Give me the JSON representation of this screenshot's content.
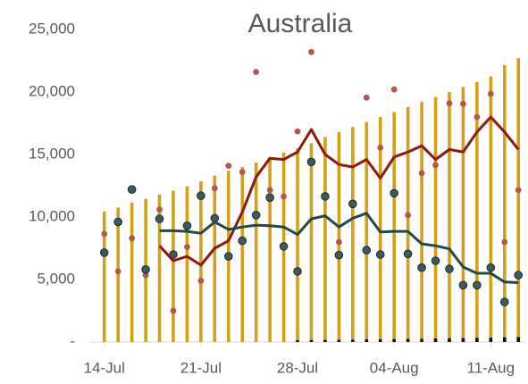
{
  "chart_data": {
    "type": "combo",
    "title": "Australia",
    "categories": [
      "14-Jul",
      null,
      null,
      null,
      null,
      null,
      null,
      "21-Jul",
      null,
      null,
      null,
      null,
      null,
      null,
      "28-Jul",
      null,
      null,
      null,
      null,
      null,
      null,
      "04-Aug",
      null,
      null,
      null,
      null,
      null,
      null,
      "11-Aug",
      null,
      null
    ],
    "series": [
      {
        "kind": "bar",
        "color": "#d4a017",
        "values": [
          10450,
          10750,
          11150,
          11450,
          11800,
          12100,
          12450,
          12850,
          13300,
          13700,
          14000,
          14350,
          14800,
          15150,
          15500,
          15900,
          16400,
          16800,
          17200,
          17600,
          18000,
          18400,
          18800,
          19200,
          19600,
          20000,
          20400,
          20800,
          21250,
          22150,
          22700
        ]
      },
      {
        "kind": "bar",
        "color": "#111111",
        "values": [
          null,
          null,
          null,
          null,
          null,
          null,
          null,
          null,
          null,
          null,
          null,
          null,
          null,
          null,
          150,
          160,
          170,
          180,
          200,
          210,
          220,
          240,
          250,
          260,
          280,
          300,
          310,
          330,
          350,
          380,
          400
        ]
      },
      {
        "kind": "dot",
        "color": "#b5564a",
        "values": [
          8650,
          5650,
          8300,
          5350,
          10600,
          2500,
          7600,
          4900,
          12300,
          14100,
          13600,
          21600,
          12150,
          11650,
          16850,
          23200,
          11650,
          8000,
          11100,
          19550,
          15550,
          20200,
          10150,
          13500,
          14150,
          19100,
          19050,
          18000,
          19850,
          8000,
          12150
        ]
      },
      {
        "kind": "dot",
        "color": "#3d5a5f",
        "values": [
          7150,
          9600,
          12200,
          5800,
          9850,
          7000,
          9300,
          11700,
          9900,
          6850,
          8100,
          10150,
          11550,
          7650,
          5650,
          14400,
          11650,
          6950,
          11050,
          7350,
          7000,
          11900,
          7050,
          5950,
          6500,
          5850,
          4550,
          4550,
          5950,
          3200,
          5350
        ]
      },
      {
        "kind": "line",
        "color": "#8b1a0a",
        "values": [
          null,
          null,
          null,
          null,
          7700,
          6500,
          6850,
          6150,
          7500,
          8100,
          10400,
          13200,
          14700,
          14600,
          15200,
          17000,
          15000,
          14200,
          14000,
          14600,
          13100,
          14800,
          15200,
          15700,
          14600,
          15400,
          15200,
          16800,
          18000,
          16800,
          15400
        ]
      },
      {
        "kind": "line",
        "color": "#1f4a4a",
        "values": [
          null,
          null,
          null,
          null,
          8900,
          8900,
          8850,
          8700,
          9600,
          9000,
          9200,
          9350,
          9300,
          9200,
          8600,
          9850,
          10100,
          9200,
          9900,
          10300,
          8800,
          8850,
          8850,
          7850,
          7700,
          7450,
          6000,
          5500,
          5500,
          4800,
          4750
        ]
      }
    ],
    "ylim": [
      0,
      25000
    ],
    "yticks": [
      {
        "value": 0,
        "label": "-"
      },
      {
        "value": 5000,
        "label": "5,000"
      },
      {
        "value": 10000,
        "label": "10,000"
      },
      {
        "value": 15000,
        "label": "15,000"
      },
      {
        "value": 20000,
        "label": "20,000"
      },
      {
        "value": 25000,
        "label": "25,000"
      }
    ],
    "grid": false
  }
}
